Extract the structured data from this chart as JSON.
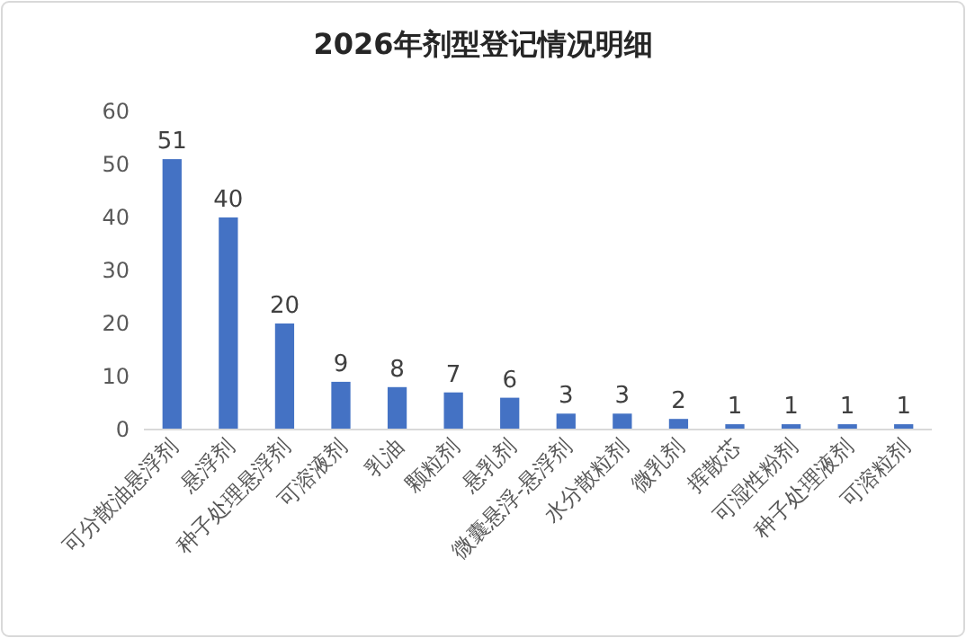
{
  "chart_data": {
    "type": "bar",
    "title": "2026年剂型登记情况明细",
    "categories": [
      "可分散油悬浮剂",
      "悬浮剂",
      "种子处理悬浮剂",
      "可溶液剂",
      "乳油",
      "颗粒剂",
      "悬乳剂",
      "微囊悬浮-悬浮剂",
      "水分散粒剂",
      "微乳剂",
      "挥散芯",
      "可湿性粉剂",
      "种子处理液剂",
      "可溶粒剂"
    ],
    "values": [
      51,
      40,
      20,
      9,
      8,
      7,
      6,
      3,
      3,
      2,
      1,
      1,
      1,
      1
    ],
    "color": "#4472c4",
    "ylim": [
      0,
      60
    ],
    "yticks": [
      0,
      10,
      20,
      30,
      40,
      50,
      60
    ],
    "grid": false,
    "data_labels": true
  }
}
